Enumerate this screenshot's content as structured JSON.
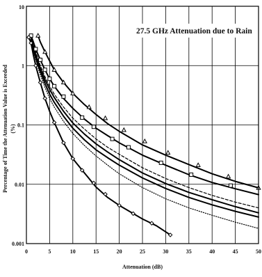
{
  "chart_data": {
    "type": "line",
    "title": "27.5 GHz Attenuation due to Rain",
    "xlabel": "Attenuation (dB)",
    "ylabel_lines": [
      "Percentage of Time the Attenuation Value is Exceeded",
      "(%)"
    ],
    "xlim": [
      0,
      50
    ],
    "ylim": [
      0.001,
      10
    ],
    "yscale": "log",
    "grid": true,
    "x_ticks": [
      "0",
      "5",
      "10",
      "15",
      "20",
      "25",
      "30",
      "35",
      "40",
      "45",
      "50"
    ],
    "y_ticks": [
      {
        "value": 10,
        "label": "10"
      },
      {
        "value": 1,
        "label": "1"
      },
      {
        "value": 0.1,
        "label": "0.1"
      },
      {
        "value": 0.01,
        "label": "0.01"
      },
      {
        "value": 0.001,
        "label": "0.001"
      }
    ],
    "series": [
      {
        "style": "solid",
        "width": 2,
        "marker": "triangle",
        "points": [
          [
            2.5,
            3.2
          ],
          [
            3,
            2.5
          ],
          [
            4,
            1.7
          ],
          [
            5,
            1.2
          ],
          [
            6,
            0.85
          ],
          [
            8,
            0.52
          ],
          [
            10,
            0.34
          ],
          [
            12.5,
            0.22
          ],
          [
            15,
            0.15
          ],
          [
            17.5,
            0.105
          ],
          [
            20,
            0.078
          ],
          [
            25,
            0.046
          ],
          [
            30,
            0.031
          ],
          [
            35,
            0.0215
          ],
          [
            40,
            0.015
          ],
          [
            45,
            0.0112
          ],
          [
            50,
            0.0087
          ]
        ],
        "marker_points": [
          [
            2.5,
            3.2
          ],
          [
            4,
            1.7
          ],
          [
            6,
            0.85
          ],
          [
            8,
            0.52
          ],
          [
            10,
            0.34
          ],
          [
            13.5,
            0.2
          ],
          [
            17,
            0.13
          ],
          [
            21,
            0.082
          ],
          [
            25.5,
            0.053
          ],
          [
            30.5,
            0.034
          ],
          [
            37,
            0.021
          ],
          [
            43.5,
            0.0135
          ],
          [
            50,
            0.0087
          ]
        ]
      },
      {
        "style": "solid",
        "width": 2,
        "marker": "square",
        "points": [
          [
            1,
            3.2
          ],
          [
            1.5,
            2.5
          ],
          [
            2,
            1.9
          ],
          [
            3,
            1.25
          ],
          [
            4,
            0.85
          ],
          [
            5,
            0.6
          ],
          [
            6,
            0.45
          ],
          [
            8,
            0.28
          ],
          [
            10,
            0.19
          ],
          [
            12.5,
            0.125
          ],
          [
            15,
            0.088
          ],
          [
            17.5,
            0.066
          ],
          [
            20,
            0.05
          ],
          [
            25,
            0.031
          ],
          [
            30,
            0.021
          ],
          [
            35,
            0.0145
          ],
          [
            40,
            0.0107
          ],
          [
            45,
            0.0084
          ],
          [
            50,
            0.0067
          ]
        ],
        "marker_points": [
          [
            1,
            3.2
          ],
          [
            2,
            1.9
          ],
          [
            3,
            1.25
          ],
          [
            4,
            0.85
          ],
          [
            5,
            0.6
          ],
          [
            6,
            0.45
          ],
          [
            8,
            0.3
          ],
          [
            12,
            0.133
          ],
          [
            14.5,
            0.093
          ],
          [
            18.5,
            0.058
          ],
          [
            22,
            0.042
          ],
          [
            29,
            0.023
          ],
          [
            35.5,
            0.0145
          ],
          [
            44,
            0.0095
          ]
        ]
      },
      {
        "style": "dashed",
        "width": 1.2,
        "marker": "none",
        "points": [
          [
            1,
            3.0
          ],
          [
            2,
            1.7
          ],
          [
            3,
            1.0
          ],
          [
            4,
            0.65
          ],
          [
            5,
            0.45
          ],
          [
            6,
            0.33
          ],
          [
            8,
            0.2
          ],
          [
            10,
            0.13
          ],
          [
            12.5,
            0.085
          ],
          [
            15,
            0.058
          ],
          [
            17.5,
            0.042
          ],
          [
            20,
            0.032
          ],
          [
            25,
            0.019
          ],
          [
            30,
            0.0125
          ],
          [
            35,
            0.0088
          ],
          [
            40,
            0.0065
          ],
          [
            45,
            0.005
          ],
          [
            50,
            0.004
          ]
        ]
      },
      {
        "style": "solid",
        "width": 2,
        "marker": "none",
        "points": [
          [
            1,
            2.8
          ],
          [
            2,
            1.5
          ],
          [
            3,
            0.9
          ],
          [
            4,
            0.58
          ],
          [
            5,
            0.4
          ],
          [
            6,
            0.29
          ],
          [
            8,
            0.17
          ],
          [
            10,
            0.108
          ],
          [
            12.5,
            0.07
          ],
          [
            15,
            0.048
          ],
          [
            17.5,
            0.035
          ],
          [
            20,
            0.026
          ],
          [
            25,
            0.0155
          ],
          [
            30,
            0.0103
          ],
          [
            35,
            0.0073
          ],
          [
            40,
            0.0055
          ],
          [
            45,
            0.0042
          ],
          [
            50,
            0.0033
          ]
        ]
      },
      {
        "style": "solid",
        "width": 2,
        "marker": "none",
        "points": [
          [
            1,
            2.6
          ],
          [
            2,
            1.35
          ],
          [
            3,
            0.8
          ],
          [
            4,
            0.5
          ],
          [
            5,
            0.33
          ],
          [
            6,
            0.24
          ],
          [
            8,
            0.14
          ],
          [
            10,
            0.088
          ],
          [
            12.5,
            0.056
          ],
          [
            15,
            0.038
          ],
          [
            17.5,
            0.028
          ],
          [
            20,
            0.021
          ],
          [
            25,
            0.0128
          ],
          [
            30,
            0.0085
          ],
          [
            35,
            0.006
          ],
          [
            40,
            0.0045
          ],
          [
            45,
            0.0035
          ],
          [
            50,
            0.0028
          ]
        ]
      },
      {
        "style": "dotted",
        "width": 1.2,
        "marker": "none",
        "points": [
          [
            1,
            2.5
          ],
          [
            2,
            1.25
          ],
          [
            3,
            0.7
          ],
          [
            4,
            0.43
          ],
          [
            5,
            0.28
          ],
          [
            6,
            0.2
          ],
          [
            8,
            0.115
          ],
          [
            10,
            0.072
          ],
          [
            12.5,
            0.045
          ],
          [
            15,
            0.03
          ],
          [
            17.5,
            0.021
          ],
          [
            20,
            0.015
          ],
          [
            25,
            0.0088
          ],
          [
            30,
            0.0057
          ],
          [
            35,
            0.004
          ],
          [
            40,
            0.003
          ],
          [
            45,
            0.0023
          ],
          [
            50,
            0.0018
          ]
        ]
      },
      {
        "style": "solid",
        "width": 2,
        "marker": "diamond",
        "points": [
          [
            0.5,
            3.0
          ],
          [
            1,
            2.4
          ],
          [
            1.5,
            1.5
          ],
          [
            2,
            1.0
          ],
          [
            3,
            0.52
          ],
          [
            4,
            0.28
          ],
          [
            5,
            0.17
          ],
          [
            6,
            0.11
          ],
          [
            8,
            0.05
          ],
          [
            10,
            0.027
          ],
          [
            12.5,
            0.0155
          ],
          [
            15,
            0.009
          ],
          [
            17.5,
            0.006
          ],
          [
            20,
            0.0044
          ],
          [
            25,
            0.0026
          ],
          [
            28,
            0.002
          ],
          [
            31,
            0.0014
          ]
        ],
        "marker_points": [
          [
            0.5,
            3.0
          ],
          [
            1,
            2.4
          ],
          [
            2,
            1.0
          ],
          [
            3,
            0.52
          ],
          [
            4,
            0.28
          ],
          [
            6,
            0.11
          ],
          [
            8,
            0.05
          ],
          [
            10,
            0.027
          ],
          [
            12,
            0.0172
          ],
          [
            14.5,
            0.0105
          ],
          [
            17,
            0.0068
          ],
          [
            20,
            0.0044
          ],
          [
            23,
            0.0032
          ],
          [
            27,
            0.0022
          ],
          [
            31,
            0.0014
          ]
        ]
      }
    ]
  }
}
